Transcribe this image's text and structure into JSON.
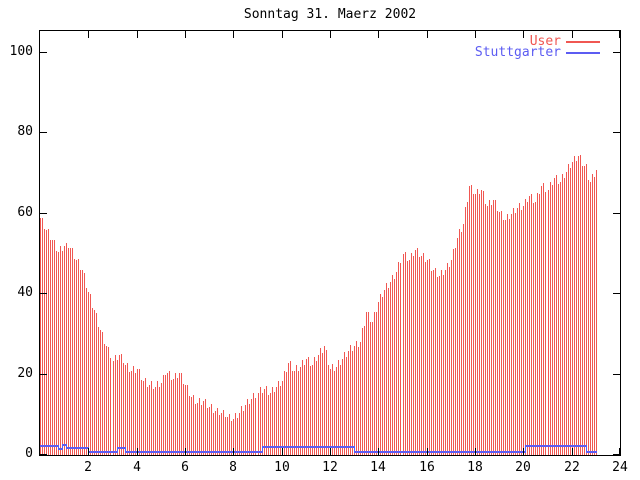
{
  "title": "Sonntag 31. Maerz 2002",
  "colors": {
    "user": "#f05752",
    "stuttgarter": "#5c5cf2",
    "axis": "#000000",
    "background": "#ffffff"
  },
  "legend": {
    "position": "top-right",
    "entries": [
      {
        "label": "User",
        "series": "user"
      },
      {
        "label": "Stuttgarter",
        "series": "stuttgarter"
      }
    ]
  },
  "chart_data": {
    "type": "bar",
    "title": "Sonntag 31. Maerz 2002",
    "xlabel": "",
    "ylabel": "",
    "x_unit": "hour of day",
    "xlim": [
      0,
      24
    ],
    "ylim": [
      0,
      105.5
    ],
    "x_ticks": [
      2,
      4,
      6,
      8,
      10,
      12,
      14,
      16,
      18,
      20,
      22,
      24
    ],
    "y_ticks": [
      0,
      20,
      40,
      60,
      80,
      100
    ],
    "grid": false,
    "legend_position": "top-right",
    "series": [
      {
        "name": "User",
        "style": "impulses",
        "color": "#f05752",
        "x_start_hour": 0,
        "x_step_minutes": 5,
        "values": [
          59,
          59,
          56.2,
          56,
          56.2,
          53.5,
          53.5,
          53.5,
          50.7,
          50.5,
          52,
          50.7,
          52,
          52.8,
          51.5,
          51.5,
          51.5,
          48.7,
          48.5,
          48.7,
          46,
          46,
          45.2,
          41.5,
          40.5,
          40,
          36.7,
          36,
          35.3,
          31.9,
          31,
          30.7,
          27.5,
          27,
          26.8,
          24.1,
          23.5,
          25,
          23.7,
          25,
          25.2,
          22.9,
          22.5,
          23,
          20.7,
          21,
          22.2,
          20.5,
          21.5,
          21.5,
          18.7,
          18.5,
          19.2,
          17,
          17.5,
          18.3,
          16.4,
          17,
          18.3,
          16.9,
          18,
          19.8,
          19.9,
          20.5,
          21,
          18.7,
          19,
          20.5,
          19.2,
          20.5,
          20.5,
          17.7,
          17.5,
          17.5,
          14.7,
          14.5,
          15,
          12.7,
          13,
          14.2,
          12.5,
          13.5,
          14,
          11.7,
          12,
          12.7,
          10.5,
          11,
          11.8,
          9.9,
          10.5,
          11.2,
          9.4,
          9.5,
          10.3,
          8.4,
          9,
          10.5,
          9.2,
          10.5,
          12.2,
          11,
          12.5,
          14,
          12.7,
          14,
          15.5,
          14.2,
          15.5,
          16.8,
          15.4,
          16.5,
          17.2,
          15,
          15.5,
          17,
          15.7,
          17,
          18.5,
          17.2,
          18.5,
          21,
          20.7,
          23,
          23.3,
          20.9,
          21,
          22.3,
          20.9,
          22,
          23.7,
          22.5,
          24,
          24.5,
          22.2,
          22.5,
          24.3,
          23.4,
          25,
          26.7,
          25.5,
          27,
          26.2,
          22.5,
          21.5,
          22.7,
          21,
          22,
          23.7,
          22.5,
          24,
          25.7,
          24.5,
          26,
          27.3,
          25.9,
          27,
          28.3,
          26.9,
          28,
          31.5,
          32.2,
          35.5,
          35.7,
          33,
          33,
          35.7,
          35.5,
          38,
          40,
          39.2,
          41,
          42.7,
          41.5,
          43,
          44.8,
          43.9,
          45.5,
          48,
          47.7,
          50,
          50.5,
          48.2,
          48.5,
          50.3,
          49.4,
          51,
          51.5,
          49.2,
          49.5,
          50.2,
          48,
          48.5,
          48.7,
          45.9,
          46,
          46.5,
          44.2,
          44.5,
          46,
          44.7,
          46,
          47.8,
          46.9,
          48.5,
          51.3,
          51.4,
          54,
          56.2,
          55.5,
          57.5,
          61.7,
          63,
          67,
          67.3,
          64.9,
          65,
          66.3,
          64.9,
          66,
          65.7,
          62.5,
          62,
          63.5,
          62.2,
          63.5,
          63.5,
          60.7,
          60.5,
          60.8,
          58.4,
          58.5,
          60,
          58.7,
          60,
          61.5,
          60.2,
          61.5,
          62.7,
          61,
          62,
          63.8,
          62.9,
          64.5,
          65,
          62.7,
          63,
          65.3,
          64.9,
          67,
          67.7,
          65.5,
          66,
          68,
          67.2,
          69,
          69.7,
          67.5,
          68,
          69.8,
          68.9,
          70.5,
          72.3,
          71.4,
          73,
          74.5,
          73.2,
          74.5,
          74.7,
          72,
          72,
          72.3,
          68.5,
          68,
          70,
          69.2,
          71
        ]
      },
      {
        "name": "Stuttgarter",
        "style": "steps",
        "color": "#5c5cf2",
        "segments": [
          {
            "from": 0,
            "to": 0.75,
            "value": 2.0
          },
          {
            "from": 0.75,
            "to": 0.92,
            "value": 1.2
          },
          {
            "from": 0.92,
            "to": 1.08,
            "value": 2.2
          },
          {
            "from": 1.08,
            "to": 2.0,
            "value": 1.5
          },
          {
            "from": 2.0,
            "to": 3.17,
            "value": 0.4
          },
          {
            "from": 3.17,
            "to": 3.5,
            "value": 1.5
          },
          {
            "from": 3.5,
            "to": 9.17,
            "value": 0.4
          },
          {
            "from": 9.17,
            "to": 13.0,
            "value": 1.8
          },
          {
            "from": 13.0,
            "to": 20.05,
            "value": 0.4
          },
          {
            "from": 20.05,
            "to": 22.6,
            "value": 2.0
          },
          {
            "from": 22.6,
            "to": 23.05,
            "value": 0.4
          }
        ]
      }
    ]
  }
}
